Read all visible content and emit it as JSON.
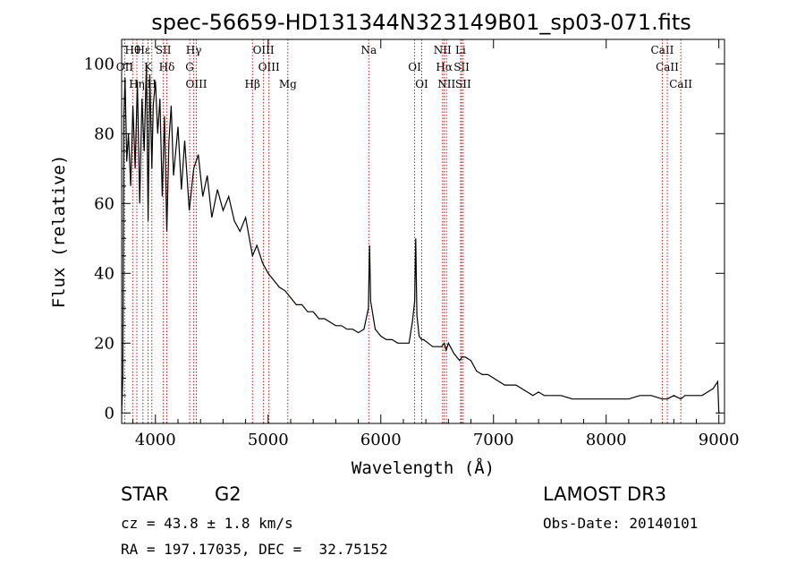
{
  "chart_data": {
    "type": "line",
    "title": "spec-56659-HD131344N323149B01_sp03-071.fits",
    "xlabel": "Wavelength (Å)",
    "ylabel": "Flux (relative)",
    "xlim": [
      3700,
      9050
    ],
    "ylim": [
      -3,
      107
    ],
    "xticks": [
      4000,
      5000,
      6000,
      7000,
      8000,
      9000
    ],
    "yticks": [
      0,
      20,
      40,
      60,
      80,
      100
    ],
    "series": [
      {
        "name": "spectrum",
        "x": [
          3700,
          3710,
          3720,
          3730,
          3745,
          3760,
          3780,
          3800,
          3820,
          3840,
          3860,
          3880,
          3900,
          3920,
          3935,
          3950,
          3968,
          3980,
          4000,
          4020,
          4040,
          4060,
          4080,
          4101,
          4120,
          4140,
          4160,
          4180,
          4200,
          4230,
          4260,
          4300,
          4340,
          4380,
          4420,
          4460,
          4500,
          4550,
          4600,
          4650,
          4700,
          4750,
          4800,
          4861,
          4900,
          4950,
          5000,
          5050,
          5100,
          5150,
          5200,
          5250,
          5300,
          5350,
          5400,
          5450,
          5500,
          5550,
          5600,
          5650,
          5700,
          5750,
          5800,
          5850,
          5890,
          5900,
          5910,
          5950,
          6000,
          6050,
          6100,
          6150,
          6200,
          6250,
          6280,
          6300,
          6310,
          6320,
          6340,
          6363,
          6380,
          6420,
          6460,
          6500,
          6540,
          6563,
          6580,
          6600,
          6650,
          6700,
          6720,
          6750,
          6800,
          6850,
          6900,
          6950,
          7000,
          7050,
          7100,
          7150,
          7200,
          7250,
          7300,
          7350,
          7400,
          7450,
          7500,
          7600,
          7700,
          7800,
          7900,
          8000,
          8100,
          8200,
          8300,
          8400,
          8498,
          8542,
          8600,
          8662,
          8700,
          8750,
          8800,
          8850,
          8900,
          8950,
          8990,
          9000,
          9010
        ],
        "y": [
          0,
          10,
          85,
          96,
          72,
          80,
          65,
          88,
          70,
          95,
          60,
          90,
          75,
          100,
          55,
          97,
          70,
          88,
          95,
          80,
          90,
          62,
          85,
          52,
          78,
          88,
          68,
          75,
          82,
          64,
          78,
          58,
          70,
          74,
          62,
          68,
          56,
          64,
          58,
          62,
          55,
          52,
          56,
          45,
          48,
          43,
          40,
          38,
          36,
          35,
          33,
          31,
          31,
          29,
          29,
          27,
          27,
          26,
          25,
          25,
          24,
          24,
          23,
          24,
          30,
          48,
          32,
          24,
          22,
          21,
          21,
          20,
          20,
          20,
          26,
          32,
          50,
          28,
          22,
          21,
          21,
          20,
          19,
          19,
          19,
          20,
          18,
          20,
          17,
          15,
          16,
          16,
          15,
          12,
          11,
          11,
          10,
          9,
          8,
          8,
          8,
          7,
          6,
          5,
          6,
          5,
          5,
          5,
          4,
          4,
          4,
          4,
          4,
          4,
          5,
          5,
          4,
          4,
          5,
          4,
          5,
          5,
          5,
          5,
          6,
          7,
          9,
          0,
          0
        ]
      }
    ],
    "lines": [
      {
        "label": "Hθ",
        "wave": 3798
      },
      {
        "label": "OII",
        "wave": 3727
      },
      {
        "label": "Hη",
        "wave": 3835
      },
      {
        "label": "Hε",
        "wave": 3889
      },
      {
        "label": "K",
        "wave": 3934
      },
      {
        "label": "H",
        "wave": 3968
      },
      {
        "label": "SII",
        "wave": 4070
      },
      {
        "label": "Hδ",
        "wave": 4101
      },
      {
        "label": "OIII",
        "wave": 4363
      },
      {
        "label": "Hγ",
        "wave": 4340
      },
      {
        "label": "G",
        "wave": 4304
      },
      {
        "label": "Hβ",
        "wave": 4861
      },
      {
        "label": "OIII",
        "wave": 4959
      },
      {
        "label": "OIII",
        "wave": 5007
      },
      {
        "label": "Mg",
        "wave": 5175
      },
      {
        "label": "Na",
        "wave": 5893
      },
      {
        "label": "OI",
        "wave": 6300
      },
      {
        "label": "OI",
        "wave": 6363
      },
      {
        "label": "NII",
        "wave": 6548
      },
      {
        "label": "Hα",
        "wave": 6563
      },
      {
        "label": "NII",
        "wave": 6583
      },
      {
        "label": "Li",
        "wave": 6708
      },
      {
        "label": "SII",
        "wave": 6717
      },
      {
        "label": "SII",
        "wave": 6731
      },
      {
        "label": "CaII",
        "wave": 8498
      },
      {
        "label": "CaII",
        "wave": 8542
      },
      {
        "label": "CaII",
        "wave": 8662
      }
    ]
  },
  "info": {
    "object_class": "STAR",
    "subclass": "G2",
    "survey": "LAMOST DR3",
    "redshift": "cz = 43.8 ± 1.8 km/s",
    "obs_date": "Obs-Date: 20140101",
    "coords": "RA = 197.17035, DEC =  32.75152"
  },
  "colors": {
    "spectrum": "#000000",
    "line_marker": "#b22222",
    "axes": "#000000"
  }
}
